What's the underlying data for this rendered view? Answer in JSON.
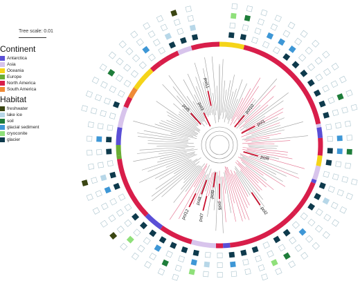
{
  "tree_scale": "Tree scale: 0.01",
  "continent": {
    "title": "Continent",
    "items": [
      {
        "label": "Antarctica",
        "color": "#5a4fd6"
      },
      {
        "label": "Asia",
        "color": "#d8c4ec"
      },
      {
        "label": "Oceania",
        "color": "#f5d419"
      },
      {
        "label": "Europe",
        "color": "#6aad34"
      },
      {
        "label": "North America",
        "color": "#d81e4a"
      },
      {
        "label": "South America",
        "color": "#ef8a36"
      }
    ]
  },
  "habitat": {
    "title": "Habitat",
    "items": [
      {
        "label": "freshwater",
        "color": "#3a4512"
      },
      {
        "label": "lake ice",
        "color": "#b7d7e8"
      },
      {
        "label": "soil",
        "color": "#1e7d3a"
      },
      {
        "label": "glacial sediment",
        "color": "#3e97d6"
      },
      {
        "label": "cryoconite",
        "color": "#8fe07a"
      },
      {
        "label": "glacier",
        "color": "#0e3a4c"
      }
    ]
  },
  "tree_labels": [
    "pol1",
    "pol2",
    "pol3",
    "pol4",
    "pol5",
    "pol6",
    "pol7",
    "pol8",
    "pol9",
    "pol10",
    "pol11",
    "pol12"
  ]
}
